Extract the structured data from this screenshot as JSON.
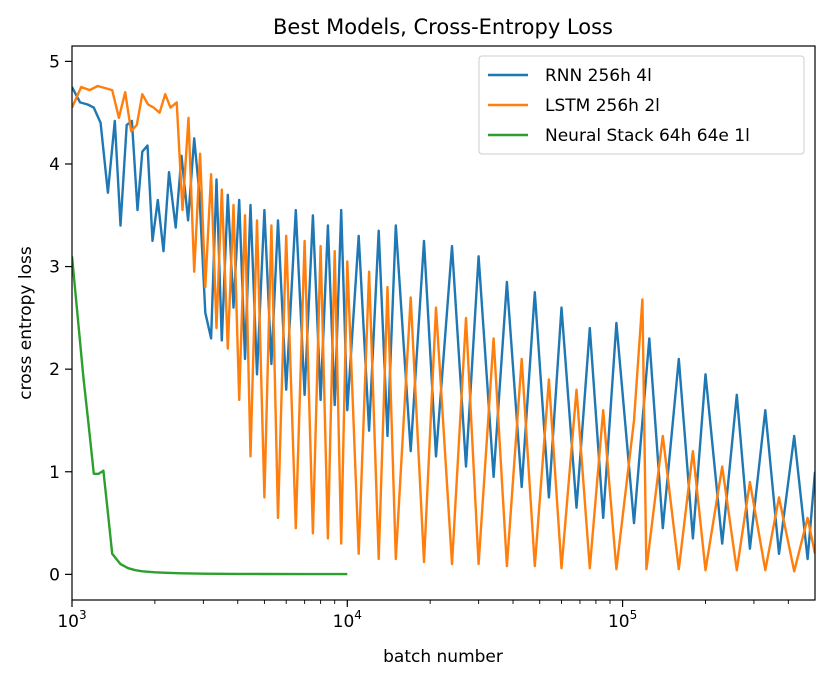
{
  "chart_data": {
    "type": "line",
    "title": "Best Models, Cross-Entropy Loss",
    "xlabel": "batch number",
    "ylabel": "cross entropy loss",
    "xscale": "log",
    "xlim": [
      1000,
      500000
    ],
    "ylim": [
      -0.25,
      5.15
    ],
    "xticks": [
      {
        "base": "10",
        "exp": "3"
      },
      {
        "base": "10",
        "exp": "4"
      },
      {
        "base": "10",
        "exp": "5"
      }
    ],
    "yticks": [
      "0",
      "1",
      "2",
      "3",
      "4",
      "5"
    ],
    "grid": false,
    "legend_position": "top-right",
    "series": [
      {
        "name": "RNN 256h 4l",
        "color": "#1f77b4",
        "x": [
          1000,
          1070,
          1140,
          1200,
          1270,
          1350,
          1430,
          1500,
          1580,
          1650,
          1730,
          1800,
          1880,
          1960,
          2050,
          2150,
          2250,
          2380,
          2500,
          2640,
          2780,
          2900,
          3050,
          3200,
          3350,
          3500,
          3680,
          3860,
          4050,
          4250,
          4450,
          4700,
          5000,
          5300,
          5600,
          6000,
          6500,
          7000,
          7500,
          8000,
          8500,
          9000,
          9500,
          10000,
          11000,
          12000,
          13000,
          14000,
          15000,
          17000,
          19000,
          21000,
          24000,
          27000,
          30000,
          34000,
          38000,
          43000,
          48000,
          54000,
          60000,
          68000,
          76000,
          85000,
          95000,
          110000,
          125000,
          140000,
          160000,
          180000,
          200000,
          230000,
          260000,
          290000,
          330000,
          370000,
          420000,
          470000,
          500000
        ],
        "y": [
          4.75,
          4.6,
          4.58,
          4.55,
          4.4,
          3.72,
          4.42,
          3.4,
          4.38,
          4.42,
          3.55,
          4.12,
          4.18,
          3.25,
          3.65,
          3.15,
          3.92,
          3.38,
          4.08,
          3.45,
          4.25,
          3.72,
          2.55,
          2.3,
          3.85,
          2.28,
          3.7,
          2.6,
          3.65,
          2.1,
          3.6,
          1.95,
          3.55,
          2.05,
          3.45,
          1.8,
          3.55,
          1.75,
          3.5,
          1.7,
          3.4,
          1.65,
          3.55,
          1.6,
          3.3,
          1.4,
          3.35,
          1.35,
          3.4,
          1.2,
          3.25,
          1.15,
          3.2,
          1.05,
          3.1,
          0.95,
          2.85,
          0.85,
          2.75,
          0.75,
          2.6,
          0.65,
          2.4,
          0.55,
          2.45,
          0.5,
          2.3,
          0.45,
          2.1,
          0.35,
          1.95,
          0.3,
          1.75,
          0.25,
          1.6,
          0.2,
          1.35,
          0.15,
          1.0
        ]
      },
      {
        "name": "LSTM 256h 2l",
        "color": "#ff7f0e",
        "x": [
          1000,
          1080,
          1160,
          1240,
          1320,
          1400,
          1480,
          1560,
          1640,
          1720,
          1800,
          1890,
          1980,
          2080,
          2180,
          2280,
          2400,
          2520,
          2650,
          2780,
          2920,
          3050,
          3200,
          3350,
          3500,
          3680,
          3860,
          4050,
          4250,
          4450,
          4700,
          5000,
          5300,
          5600,
          6000,
          6500,
          7000,
          7500,
          8000,
          8500,
          9000,
          9500,
          10000,
          11000,
          12000,
          13000,
          14000,
          15000,
          17000,
          19000,
          21000,
          24000,
          27000,
          30000,
          34000,
          38000,
          43000,
          48000,
          54000,
          60000,
          68000,
          76000,
          85000,
          95000,
          110000,
          118000,
          122000,
          140000,
          160000,
          180000,
          200000,
          230000,
          260000,
          290000,
          330000,
          370000,
          420000,
          470000,
          500000
        ],
        "y": [
          4.55,
          4.75,
          4.72,
          4.76,
          4.74,
          4.72,
          4.45,
          4.7,
          4.32,
          4.38,
          4.68,
          4.58,
          4.55,
          4.5,
          4.68,
          4.55,
          4.6,
          3.55,
          4.45,
          2.95,
          4.1,
          2.8,
          3.9,
          2.4,
          3.75,
          2.2,
          3.6,
          1.7,
          3.5,
          1.15,
          3.45,
          0.75,
          3.4,
          0.55,
          3.3,
          0.45,
          3.25,
          0.4,
          3.2,
          0.35,
          3.15,
          0.3,
          3.05,
          0.2,
          2.95,
          0.15,
          2.8,
          0.15,
          2.7,
          0.12,
          2.6,
          0.1,
          2.5,
          0.1,
          2.3,
          0.08,
          2.1,
          0.08,
          1.9,
          0.06,
          1.8,
          0.06,
          1.6,
          0.05,
          1.5,
          2.68,
          0.05,
          1.35,
          0.05,
          1.2,
          0.04,
          1.05,
          0.04,
          0.9,
          0.04,
          0.75,
          0.03,
          0.55,
          0.2
        ]
      },
      {
        "name": "Neural Stack 64h 64e 1l",
        "color": "#2ca02c",
        "x": [
          1000,
          1100,
          1150,
          1200,
          1250,
          1300,
          1350,
          1400,
          1500,
          1600,
          1700,
          1800,
          2000,
          2200,
          2500,
          3000,
          4000,
          5000,
          7000,
          10000
        ],
        "y": [
          3.1,
          1.92,
          1.45,
          0.98,
          0.98,
          1.01,
          0.6,
          0.2,
          0.1,
          0.06,
          0.04,
          0.03,
          0.02,
          0.015,
          0.01,
          0.006,
          0.004,
          0.003,
          0.002,
          0.002
        ]
      }
    ]
  }
}
